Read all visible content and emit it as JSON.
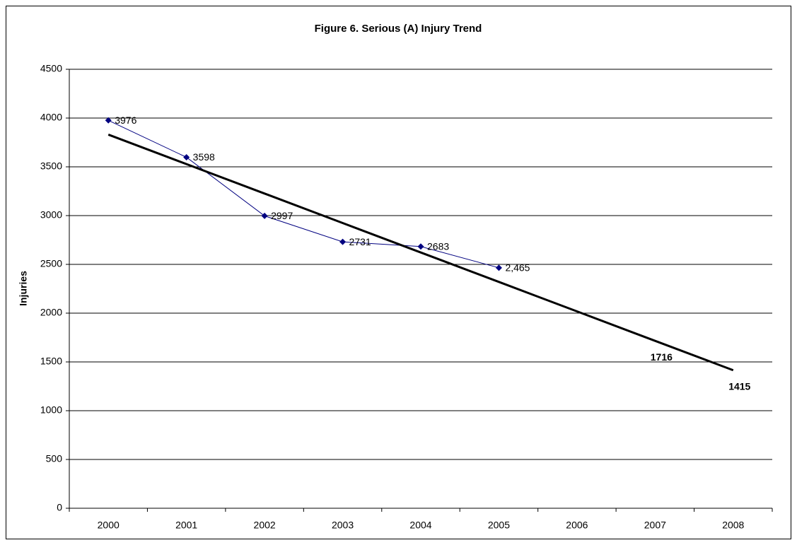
{
  "chart_data": {
    "type": "line",
    "title": "Figure 6.  Serious (A) Injury Trend",
    "y_label": "Injuries",
    "categories": [
      "2000",
      "2001",
      "2002",
      "2003",
      "2004",
      "2005",
      "2006",
      "2007",
      "2008"
    ],
    "series": [
      {
        "color": "#000080",
        "marker": "diamond",
        "values": [
          3976,
          3598,
          2997,
          2731,
          2683,
          2465,
          null,
          null,
          null
        ],
        "value_labels": [
          "3976",
          "3598",
          "2997",
          "2731",
          "2683",
          "2,465",
          null,
          null,
          null
        ]
      },
      {
        "color": "#000000",
        "line_width": 3,
        "marker": "none",
        "values": [
          3830,
          3528,
          3226,
          2924,
          2622,
          2320,
          2018,
          1716,
          1415
        ],
        "value_labels": [
          null,
          null,
          null,
          null,
          null,
          null,
          null,
          "1716",
          "1415"
        ]
      }
    ],
    "ylim": [
      0,
      4500
    ],
    "yticks": [
      0,
      500,
      1000,
      1500,
      2000,
      2500,
      3000,
      3500,
      4000,
      4500
    ],
    "grid": true
  }
}
